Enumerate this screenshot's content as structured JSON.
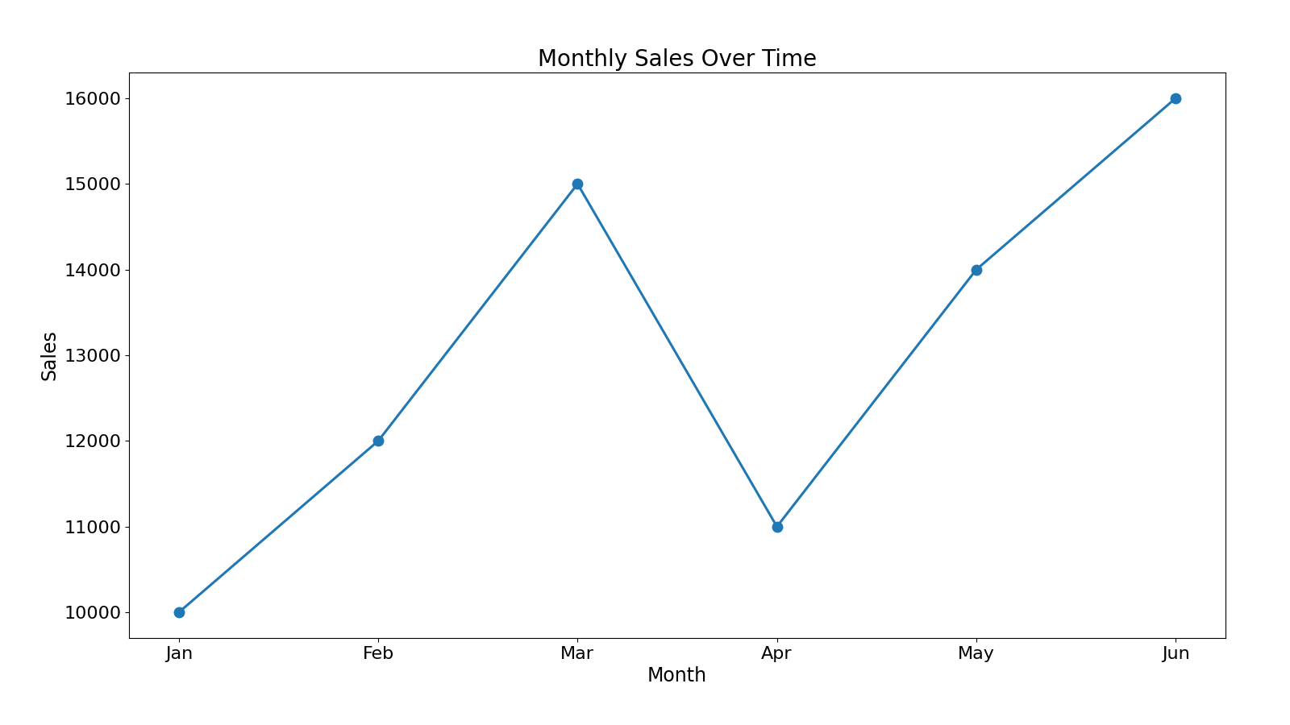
{
  "chart_data": {
    "type": "line",
    "title": "Monthly Sales Over Time",
    "x_label": "Month",
    "y_label": "Sales",
    "categories": [
      "Jan",
      "Feb",
      "Mar",
      "Apr",
      "May",
      "Jun"
    ],
    "values": [
      10000,
      12000,
      15000,
      11000,
      14000,
      16000
    ],
    "color": "#1f77b4",
    "marker": "o",
    "line_style": "solid",
    "ylim": [
      9700,
      16300
    ],
    "yticks": [
      10000,
      11000,
      12000,
      13000,
      14000,
      15000,
      16000
    ],
    "grid": false
  }
}
